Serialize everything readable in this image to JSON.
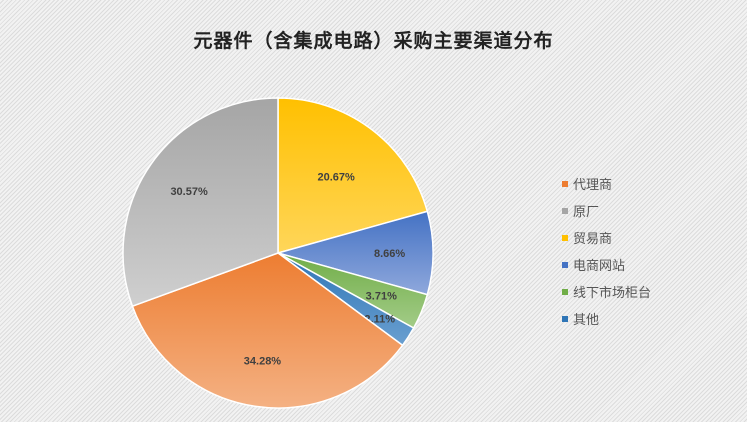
{
  "chart_data": {
    "type": "pie",
    "title": "元器件（含集成电路）采购主要渠道分布",
    "legend_position": "right",
    "start_angle_deg": 0,
    "direction": "clockwise",
    "slices": [
      {
        "label": "贸易商",
        "value": 20.67,
        "display": "20.67%",
        "color": "#ffc000",
        "color2": "#ffd65a"
      },
      {
        "label": "电商网站",
        "value": 8.66,
        "display": "8.66%",
        "color": "#4472c4",
        "color2": "#8fa8dc"
      },
      {
        "label": "线下市场柜台",
        "value": 3.71,
        "display": "3.71%",
        "color": "#70ad47",
        "color2": "#a3cc88"
      },
      {
        "label": "其他",
        "value": 2.11,
        "display": "2.11%",
        "color": "#2e75b6",
        "color2": "#6a9fd0"
      },
      {
        "label": "代理商",
        "value": 34.28,
        "display": "34.28%",
        "color": "#ed7d31",
        "color2": "#f4b183"
      },
      {
        "label": "原厂",
        "value": 30.57,
        "display": "30.57%",
        "color": "#a5a5a5",
        "color2": "#cfcfcf"
      }
    ],
    "legend_order": [
      "代理商",
      "原厂",
      "贸易商",
      "电商网站",
      "线下市场柜台",
      "其他"
    ]
  }
}
